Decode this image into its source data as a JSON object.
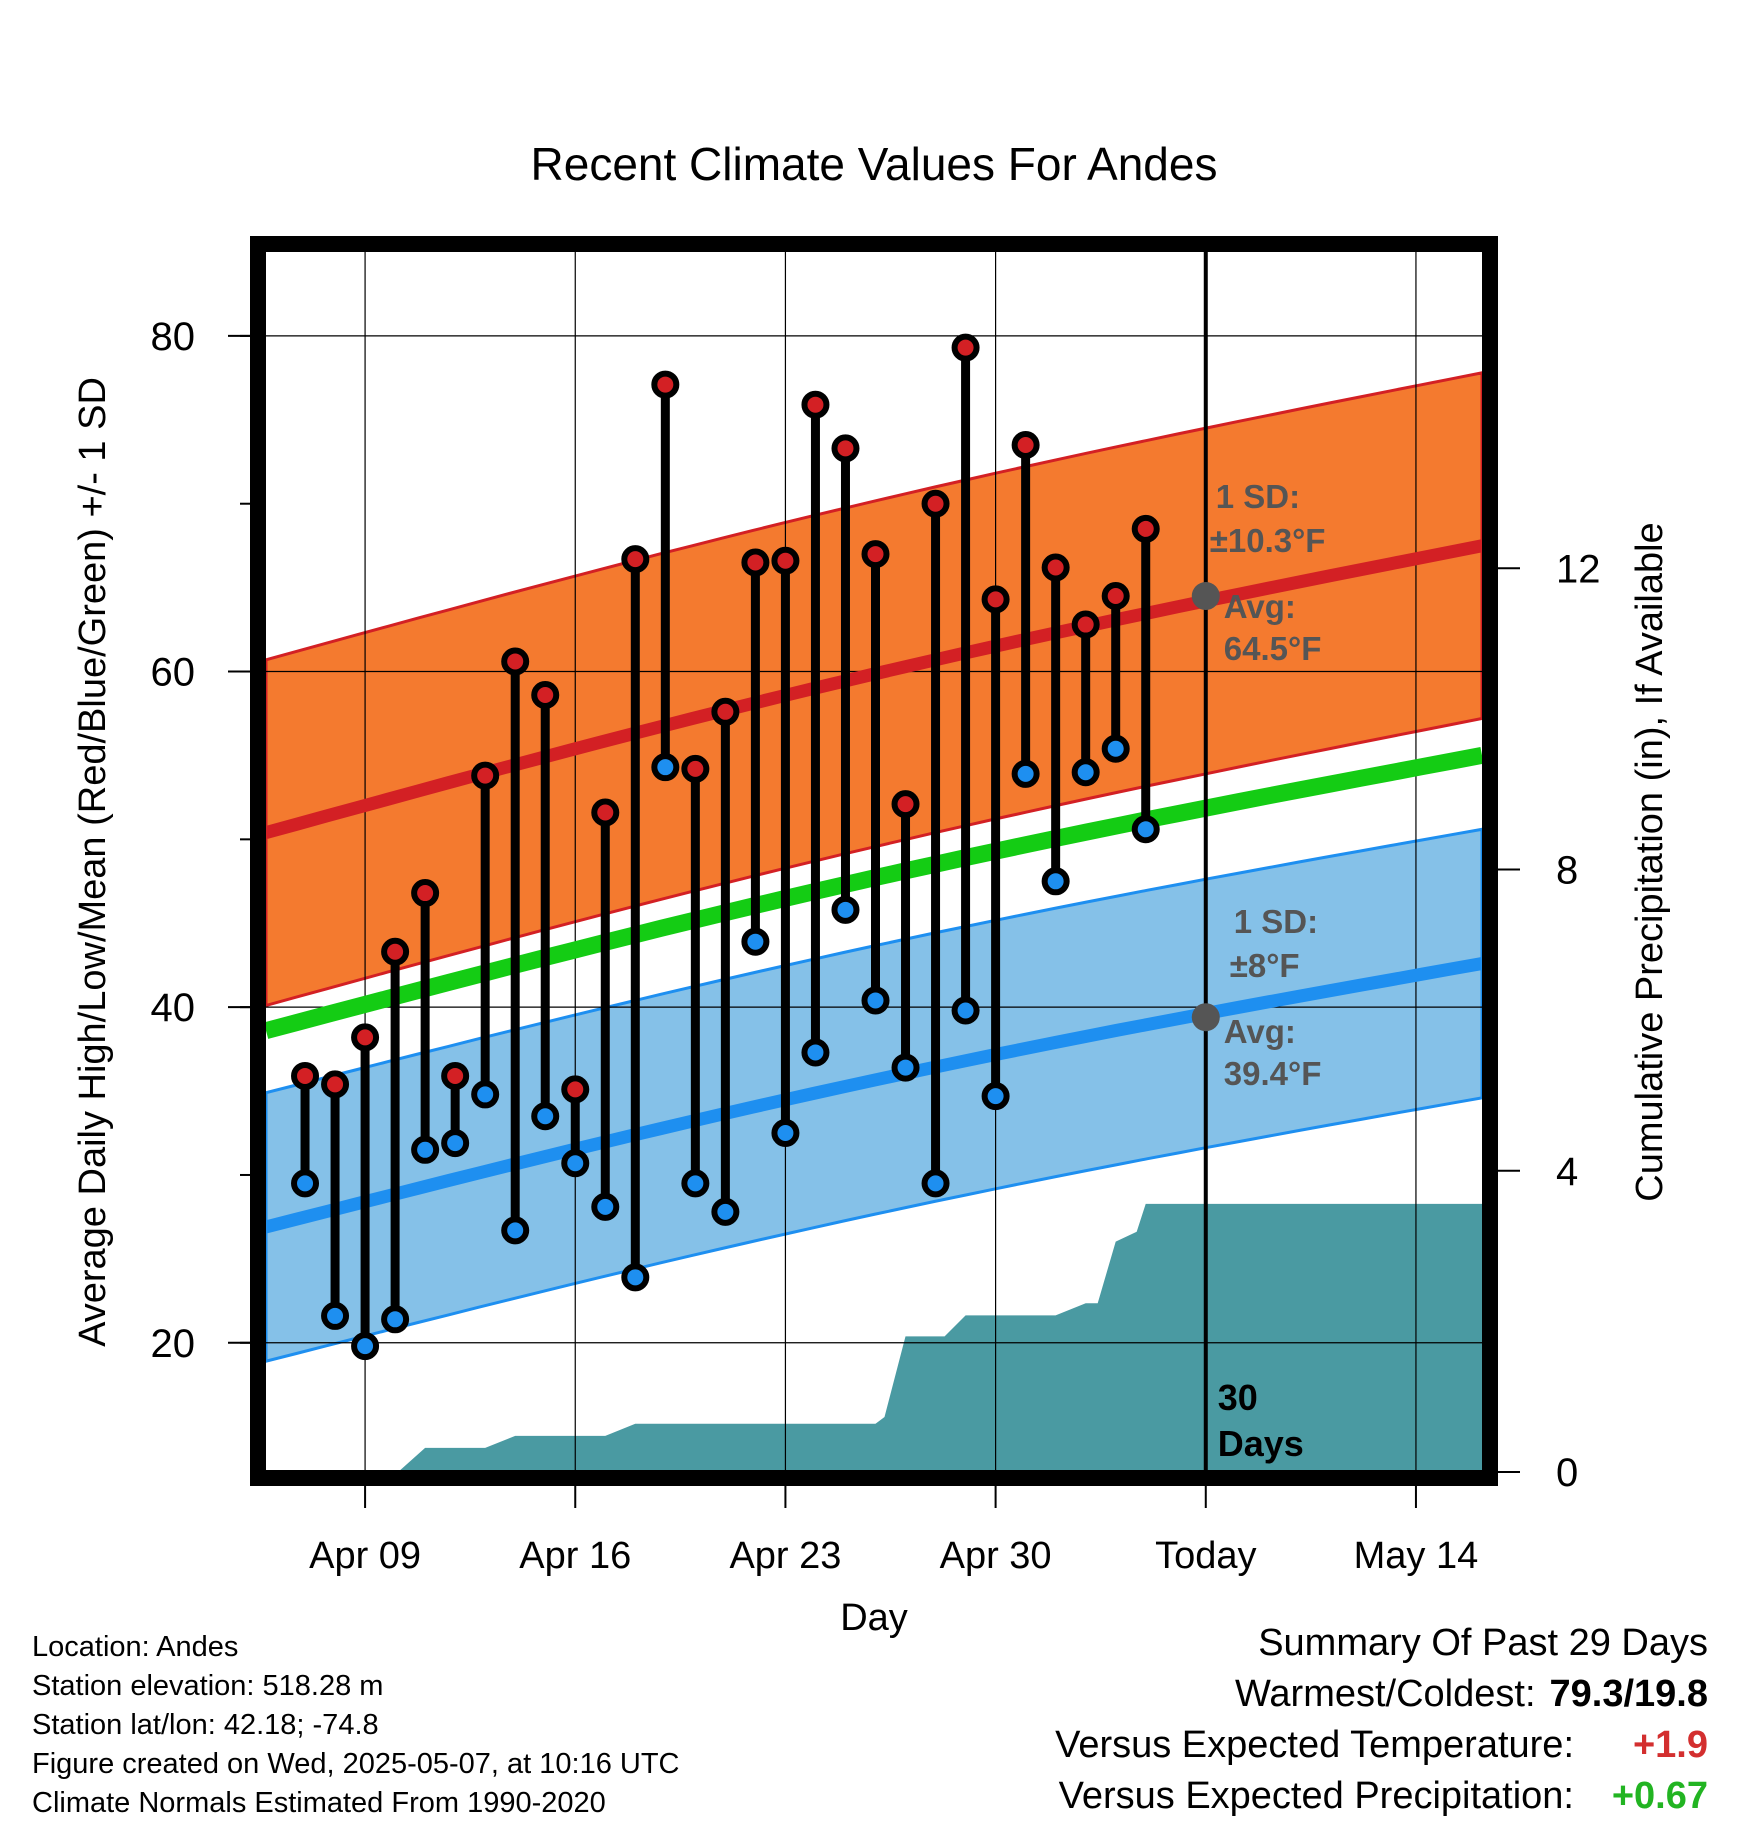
{
  "chart_data": {
    "type": "line",
    "title": "Recent Climate Values For Andes",
    "xlabel": "Day",
    "ylabel": "Average Daily High/Low/Mean (Red/Blue/Green) +/- 1 SD",
    "y2label": "Cumulative Precipitation (in), If Available",
    "ylim": [
      12.3,
      85
    ],
    "y2lim": [
      0,
      16.2
    ],
    "yticks": [
      "20",
      "40",
      "60",
      "80"
    ],
    "y2ticks": [
      "0",
      "4",
      "8",
      "12"
    ],
    "xlim": [
      -1.3,
      39.2
    ],
    "xtick_days": [
      2,
      9,
      16,
      23,
      30,
      37
    ],
    "xticks": [
      "Apr 09",
      "Apr 16",
      "Apr 23",
      "Apr 30",
      "Today",
      "May 14"
    ],
    "today_day": 30,
    "days_label": "30\nDays",
    "colors": {
      "high_band": "#f47a2f",
      "high_line": "#d32024",
      "low_band": "#85c1e8",
      "low_line": "#1e8ff0",
      "mean_line": "#14cc14",
      "precip": "#4a9aa2",
      "high_marker": "#d32024",
      "low_marker": "#1e8ff0"
    },
    "normals": {
      "days": [
        -1.3,
        39.2
      ],
      "high_avg": [
        50.4,
        67.5
      ],
      "high_sd": 10.3,
      "low_avg": [
        26.9,
        42.6
      ],
      "low_sd": 8,
      "mean_avg": [
        38.6,
        55.0
      ]
    },
    "annotations": {
      "high_sd_label": "1 SD:",
      "high_sd_value": "±10.3°F",
      "high_avg_label": "Avg:",
      "high_avg_value": "64.5°F",
      "high_avg": 64.5,
      "low_sd_label": "1 SD:",
      "low_sd_value": "±8°F",
      "low_avg_label": "Avg:",
      "low_avg_value": "39.4°F",
      "low_avg": 39.4
    },
    "daily": {
      "day": [
        0,
        1,
        2,
        3,
        4,
        5,
        6,
        7,
        8,
        9,
        10,
        11,
        12,
        13,
        14,
        15,
        16,
        17,
        18,
        19,
        20,
        21,
        22,
        23,
        24,
        25,
        26,
        27,
        28
      ],
      "high": [
        35.9,
        35.4,
        38.2,
        43.3,
        46.8,
        35.9,
        53.8,
        60.6,
        58.6,
        35.1,
        51.6,
        66.7,
        77.1,
        54.2,
        57.6,
        66.5,
        66.6,
        75.9,
        73.3,
        67.0,
        52.1,
        70.0,
        79.3,
        64.3,
        73.5,
        66.2,
        62.8,
        64.5,
        68.5
      ],
      "low": [
        29.5,
        21.6,
        19.8,
        21.4,
        31.5,
        31.9,
        34.8,
        26.7,
        33.5,
        30.7,
        28.1,
        23.9,
        54.3,
        29.5,
        27.8,
        43.9,
        32.5,
        37.3,
        45.8,
        40.4,
        36.4,
        29.5,
        39.8,
        34.7,
        53.9,
        47.5,
        54.0,
        55.4,
        50.6
      ]
    },
    "precip": {
      "day": [
        2.9,
        3.1,
        4.0,
        5.0,
        6.0,
        7.0,
        8.0,
        9.0,
        10.0,
        11.0,
        12.0,
        13.0,
        14.0,
        15.0,
        16.0,
        17.0,
        18.0,
        19.0,
        19.3,
        20.0,
        21.0,
        21.3,
        22.0,
        23.0,
        24.0,
        25.0,
        26.0,
        26.4,
        27.0,
        27.7,
        28.0,
        39.2
      ],
      "value": [
        0,
        0,
        0.32,
        0.32,
        0.32,
        0.48,
        0.48,
        0.48,
        0.48,
        0.64,
        0.64,
        0.64,
        0.64,
        0.64,
        0.64,
        0.64,
        0.64,
        0.64,
        0.73,
        1.8,
        1.8,
        1.8,
        2.08,
        2.08,
        2.08,
        2.08,
        2.24,
        2.24,
        3.06,
        3.19,
        3.56,
        3.56
      ]
    }
  },
  "info": {
    "location": "Location: Andes",
    "elevation": "Station elevation: 518.28 m",
    "latlon": "Station lat/lon: 42.18; -74.8",
    "created": "Figure created on Wed, 2025-05-07, at 10:16 UTC",
    "normals_period": "Climate Normals Estimated From 1990-2020"
  },
  "summary": {
    "title": "Summary Of Past 29 Days",
    "warmest_label": "Warmest/Coldest:",
    "warmest_value": "79.3/19.8",
    "temp_label": "Versus Expected Temperature:",
    "temp_value": "+1.9",
    "precip_label": "Versus Expected Precipitation:",
    "precip_value": "+0.67"
  }
}
